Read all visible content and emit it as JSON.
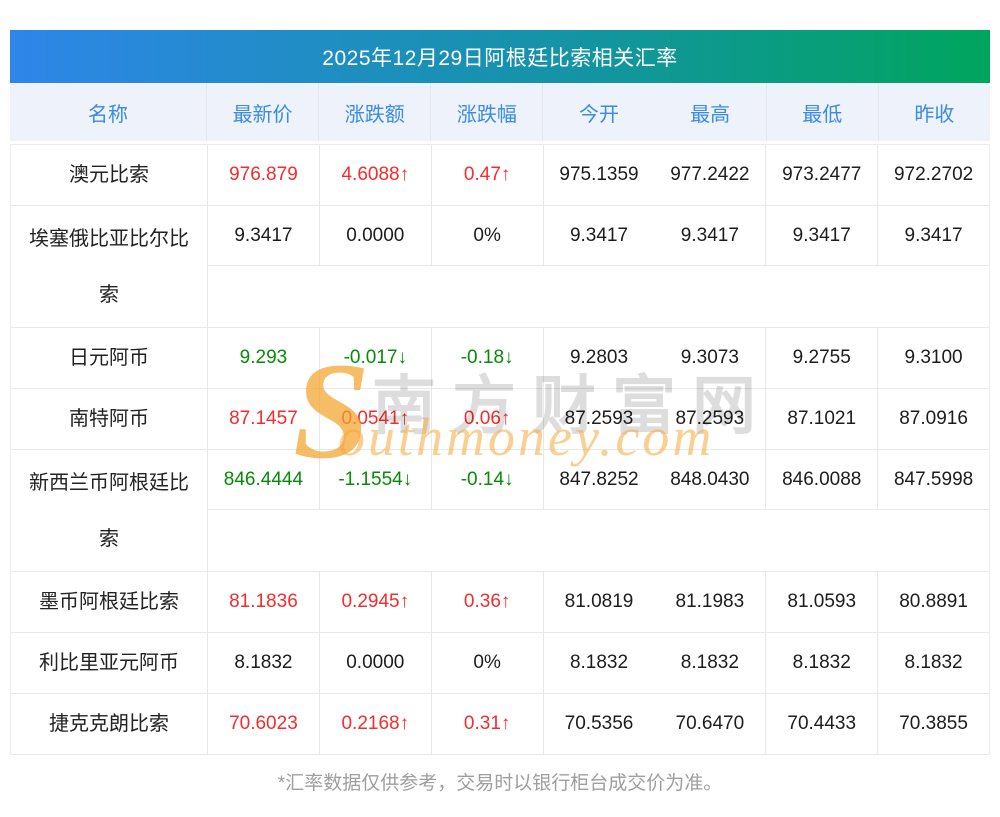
{
  "title": "2025年12月29日阿根廷比索相关汇率",
  "columns": [
    "名称",
    "最新价",
    "涨跌额",
    "涨跌幅",
    "今开",
    "最高",
    "最低",
    "昨收"
  ],
  "rows": [
    {
      "name": "澳元比索",
      "latest": "976.879",
      "change": "4.6088↑",
      "pct": "0.47↑",
      "open": "975.1359",
      "high": "977.2422",
      "low": "973.2477",
      "prev": "972.2702",
      "trend": "up",
      "two_line": false
    },
    {
      "name": "埃塞俄比亚比尔比索",
      "latest": "9.3417",
      "change": "0.0000",
      "pct": "0%",
      "open": "9.3417",
      "high": "9.3417",
      "low": "9.3417",
      "prev": "9.3417",
      "trend": "flat",
      "two_line": true
    },
    {
      "name": "日元阿币",
      "latest": "9.293",
      "change": "-0.017↓",
      "pct": "-0.18↓",
      "open": "9.2803",
      "high": "9.3073",
      "low": "9.2755",
      "prev": "9.3100",
      "trend": "down",
      "two_line": false
    },
    {
      "name": "南特阿币",
      "latest": "87.1457",
      "change": "0.0541↑",
      "pct": "0.06↑",
      "open": "87.2593",
      "high": "87.2593",
      "low": "87.1021",
      "prev": "87.0916",
      "trend": "up",
      "two_line": false
    },
    {
      "name": "新西兰币阿根廷比索",
      "latest": "846.4444",
      "change": "-1.1554↓",
      "pct": "-0.14↓",
      "open": "847.8252",
      "high": "848.0430",
      "low": "846.0088",
      "prev": "847.5998",
      "trend": "down",
      "two_line": true
    },
    {
      "name": "墨币阿根廷比索",
      "latest": "81.1836",
      "change": "0.2945↑",
      "pct": "0.36↑",
      "open": "81.0819",
      "high": "81.1983",
      "low": "81.0593",
      "prev": "80.8891",
      "trend": "up",
      "two_line": false
    },
    {
      "name": "利比里亚元阿币",
      "latest": "8.1832",
      "change": "0.0000",
      "pct": "0%",
      "open": "8.1832",
      "high": "8.1832",
      "low": "8.1832",
      "prev": "8.1832",
      "trend": "flat",
      "two_line": false
    },
    {
      "name": "捷克克朗比索",
      "latest": "70.6023",
      "change": "0.2168↑",
      "pct": "0.31↑",
      "open": "70.5356",
      "high": "70.6470",
      "low": "70.4433",
      "prev": "70.3855",
      "trend": "up",
      "two_line": false
    }
  ],
  "footer_note": "*汇率数据仅供参考，交易时以银行柜台成交价为准。",
  "watermark": {
    "s": "S",
    "cn": "南方财富网",
    "en": "outhmoney.com"
  },
  "colors": {
    "up": "#f72b2b",
    "down": "#078b07",
    "flat": "#1c1c1c",
    "gradient_left": "#2e86e9",
    "gradient_right": "#00a55d",
    "header_bg": "#edf2fb",
    "header_text": "#3a8be2",
    "gridline": "#e8e8e8",
    "footer_text": "#9e9e9e"
  }
}
